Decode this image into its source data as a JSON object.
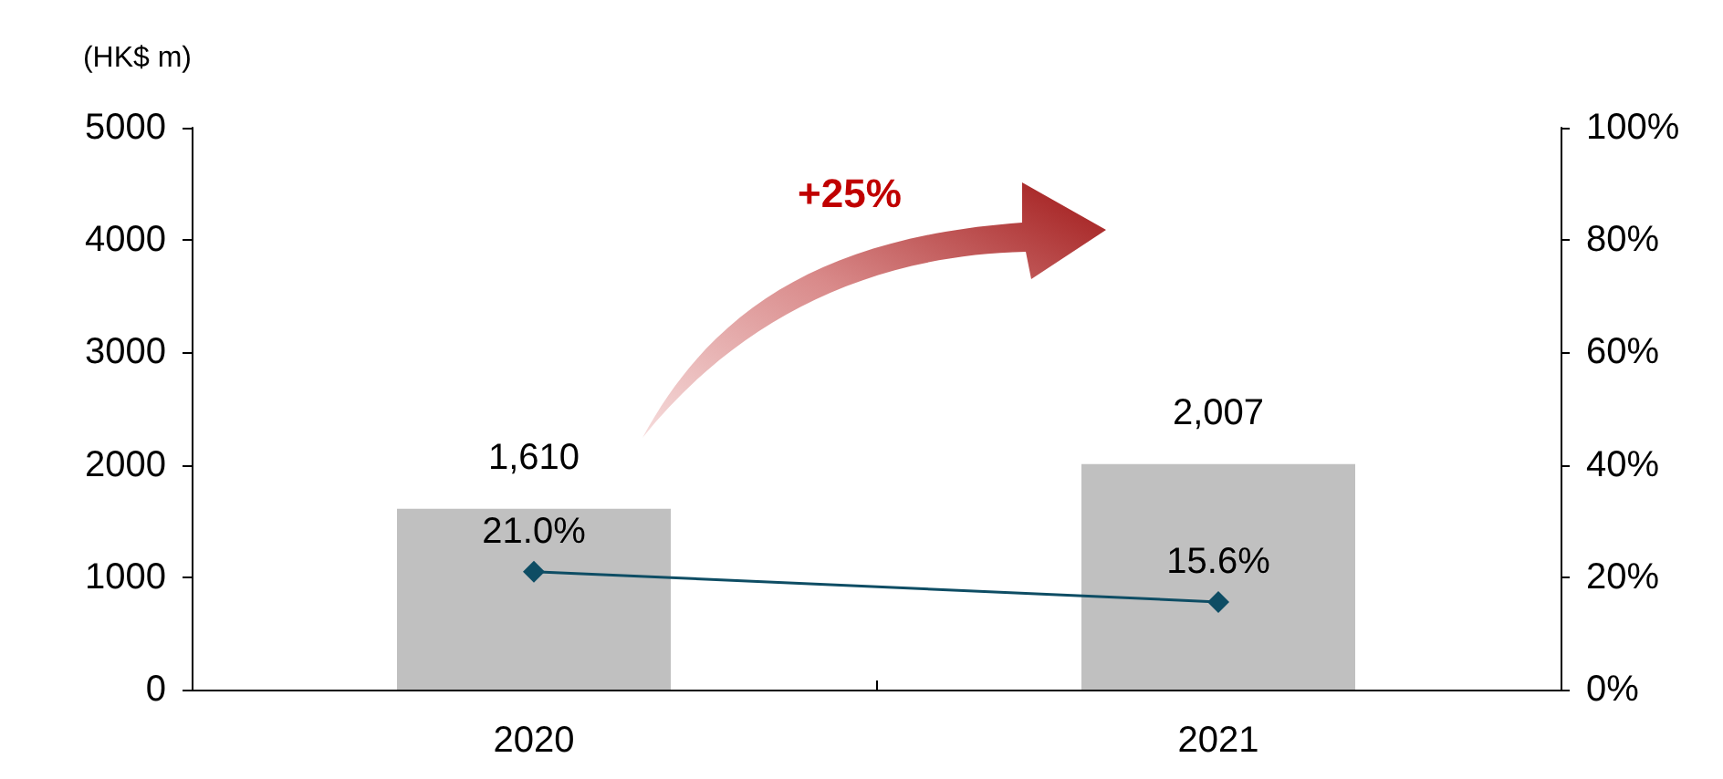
{
  "chart_data": {
    "type": "bar",
    "ylabel": "(HK$ m)",
    "categories": [
      "2020",
      "2021"
    ],
    "series": [
      {
        "color": "#c0c0c0",
        "values": [
          1610,
          2007
        ],
        "value_labels": [
          "1,610",
          "2,007"
        ]
      },
      {
        "type": "line",
        "axis": "y2",
        "color": "#0e4d64",
        "values": [
          21.0,
          15.6
        ],
        "value_labels": [
          "21.0%",
          "15.6%"
        ],
        "marker": "diamond"
      }
    ],
    "ylim": [
      0,
      5000
    ],
    "yticks": [
      0,
      1000,
      2000,
      3000,
      4000,
      5000
    ],
    "y2lim": [
      0,
      100
    ],
    "y2ticks": [
      {
        "value": 0,
        "label": "0%"
      },
      {
        "value": 20,
        "label": "20%"
      },
      {
        "value": 40,
        "label": "40%"
      },
      {
        "value": 60,
        "label": "60%"
      },
      {
        "value": 80,
        "label": "80%"
      },
      {
        "value": 100,
        "label": "100%"
      }
    ],
    "annotations": [
      "+25%"
    ],
    "grid": false
  }
}
